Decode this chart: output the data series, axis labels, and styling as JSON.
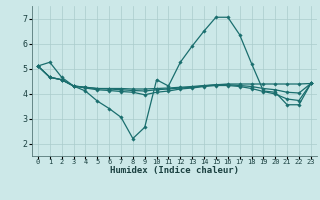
{
  "xlabel": "Humidex (Indice chaleur)",
  "ylabel": "",
  "bg_color": "#cce8e8",
  "grid_color": "#aacccc",
  "line_color": "#1a6e6e",
  "xlim": [
    -0.5,
    23.5
  ],
  "ylim": [
    1.5,
    7.5
  ],
  "xticks": [
    0,
    1,
    2,
    3,
    4,
    5,
    6,
    7,
    8,
    9,
    10,
    11,
    12,
    13,
    14,
    15,
    16,
    17,
    18,
    19,
    20,
    21,
    22,
    23
  ],
  "yticks": [
    2,
    3,
    4,
    5,
    6,
    7
  ],
  "series": [
    [
      5.1,
      5.25,
      4.65,
      4.3,
      4.1,
      3.7,
      3.4,
      3.05,
      2.2,
      2.65,
      4.55,
      4.3,
      5.25,
      5.9,
      6.5,
      7.05,
      7.05,
      6.35,
      5.2,
      4.1,
      4.05,
      3.55,
      3.55,
      4.4
    ],
    [
      5.1,
      4.65,
      4.55,
      4.3,
      4.25,
      4.2,
      4.2,
      4.2,
      4.18,
      4.18,
      4.2,
      4.22,
      4.25,
      4.28,
      4.32,
      4.35,
      4.38,
      4.38,
      4.38,
      4.38,
      4.38,
      4.38,
      4.38,
      4.4
    ],
    [
      5.1,
      4.65,
      4.55,
      4.3,
      4.25,
      4.2,
      4.18,
      4.15,
      4.12,
      4.1,
      4.15,
      4.18,
      4.22,
      4.25,
      4.3,
      4.35,
      4.35,
      4.32,
      4.28,
      4.2,
      4.15,
      4.05,
      4.02,
      4.4
    ],
    [
      5.1,
      4.65,
      4.55,
      4.3,
      4.22,
      4.15,
      4.12,
      4.08,
      4.05,
      3.95,
      4.05,
      4.1,
      4.18,
      4.22,
      4.28,
      4.32,
      4.32,
      4.28,
      4.2,
      4.08,
      3.98,
      3.78,
      3.72,
      4.4
    ]
  ]
}
